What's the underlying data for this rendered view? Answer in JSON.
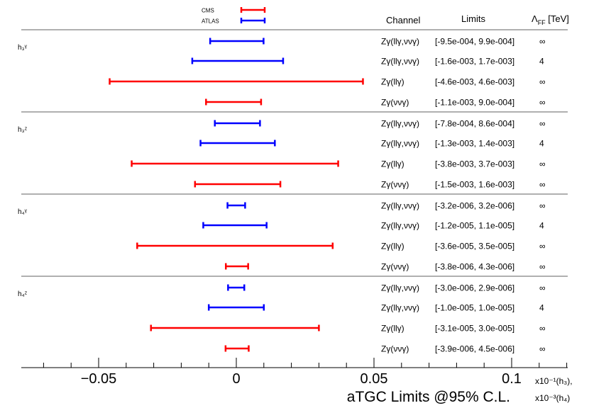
{
  "chart_data": {
    "type": "interval",
    "legend": [
      {
        "name": "CMS",
        "color": "#ff0000"
      },
      {
        "name": "ATLAS",
        "color": "#0000ff"
      }
    ],
    "headers": {
      "channel": "Channel",
      "limits": "Limits",
      "lambda": "Λ",
      "lambda_sub": "FF",
      "lambda_unit": " [TeV]"
    },
    "xlim": [
      -0.08,
      0.13
    ],
    "xticks": [
      {
        "value": -0.05,
        "label": "−0.05"
      },
      {
        "value": 0,
        "label": "0"
      },
      {
        "value": 0.05,
        "label": "0.05"
      },
      {
        "value": 0.1,
        "label": "0.1"
      }
    ],
    "xlabel": "aTGC Limits @95% C.L.",
    "scale_note_1": "x10⁻¹(h₃),",
    "scale_note_2": "x10⁻³(h₄)",
    "groups": [
      {
        "label": "h₃ᵞ",
        "rows": [
          {
            "experiment": "ATLAS",
            "channel": "Zγ(llγ,ννγ)",
            "limits": "[-9.5e-004, 9.9e-004]",
            "lambda": "∞",
            "low": -0.0095,
            "high": 0.0099
          },
          {
            "experiment": "ATLAS",
            "channel": "Zγ(llγ,ννγ)",
            "limits": "[-1.6e-003, 1.7e-003]",
            "lambda": "4",
            "low": -0.016,
            "high": 0.017
          },
          {
            "experiment": "CMS",
            "channel": "Zγ(llγ)",
            "limits": "[-4.6e-003, 4.6e-003]",
            "lambda": "∞",
            "low": -0.046,
            "high": 0.046
          },
          {
            "experiment": "CMS",
            "channel": "Zγ(ννγ)",
            "limits": "[-1.1e-003, 9.0e-004]",
            "lambda": "∞",
            "low": -0.011,
            "high": 0.009
          }
        ]
      },
      {
        "label": "h₃ᶻ",
        "rows": [
          {
            "experiment": "ATLAS",
            "channel": "Zγ(llγ,ννγ)",
            "limits": "[-7.8e-004, 8.6e-004]",
            "lambda": "∞",
            "low": -0.0078,
            "high": 0.0086
          },
          {
            "experiment": "ATLAS",
            "channel": "Zγ(llγ,ννγ)",
            "limits": "[-1.3e-003, 1.4e-003]",
            "lambda": "4",
            "low": -0.013,
            "high": 0.014
          },
          {
            "experiment": "CMS",
            "channel": "Zγ(llγ)",
            "limits": "[-3.8e-003, 3.7e-003]",
            "lambda": "∞",
            "low": -0.038,
            "high": 0.037
          },
          {
            "experiment": "CMS",
            "channel": "Zγ(ννγ)",
            "limits": "[-1.5e-003, 1.6e-003]",
            "lambda": "∞",
            "low": -0.015,
            "high": 0.016
          }
        ]
      },
      {
        "label": "h₄ᵞ",
        "rows": [
          {
            "experiment": "ATLAS",
            "channel": "Zγ(llγ,ννγ)",
            "limits": "[-3.2e-006, 3.2e-006]",
            "lambda": "∞",
            "low": -0.0032,
            "high": 0.0032
          },
          {
            "experiment": "ATLAS",
            "channel": "Zγ(llγ,ννγ)",
            "limits": "[-1.2e-005, 1.1e-005]",
            "lambda": "4",
            "low": -0.012,
            "high": 0.011
          },
          {
            "experiment": "CMS",
            "channel": "Zγ(llγ)",
            "limits": "[-3.6e-005, 3.5e-005]",
            "lambda": "∞",
            "low": -0.036,
            "high": 0.035
          },
          {
            "experiment": "CMS",
            "channel": "Zγ(ννγ)",
            "limits": "[-3.8e-006, 4.3e-006]",
            "lambda": "∞",
            "low": -0.0038,
            "high": 0.0043
          }
        ]
      },
      {
        "label": "h₄ᶻ",
        "rows": [
          {
            "experiment": "ATLAS",
            "channel": "Zγ(llγ,ννγ)",
            "limits": "[-3.0e-006, 2.9e-006]",
            "lambda": "∞",
            "low": -0.003,
            "high": 0.0029
          },
          {
            "experiment": "ATLAS",
            "channel": "Zγ(llγ,ννγ)",
            "limits": "[-1.0e-005, 1.0e-005]",
            "lambda": "4",
            "low": -0.01,
            "high": 0.01
          },
          {
            "experiment": "CMS",
            "channel": "Zγ(llγ)",
            "limits": "[-3.1e-005, 3.0e-005]",
            "lambda": "∞",
            "low": -0.031,
            "high": 0.03
          },
          {
            "experiment": "CMS",
            "channel": "Zγ(ννγ)",
            "limits": "[-3.9e-006, 4.5e-006]",
            "lambda": "∞",
            "low": -0.0039,
            "high": 0.0045
          }
        ]
      }
    ]
  }
}
